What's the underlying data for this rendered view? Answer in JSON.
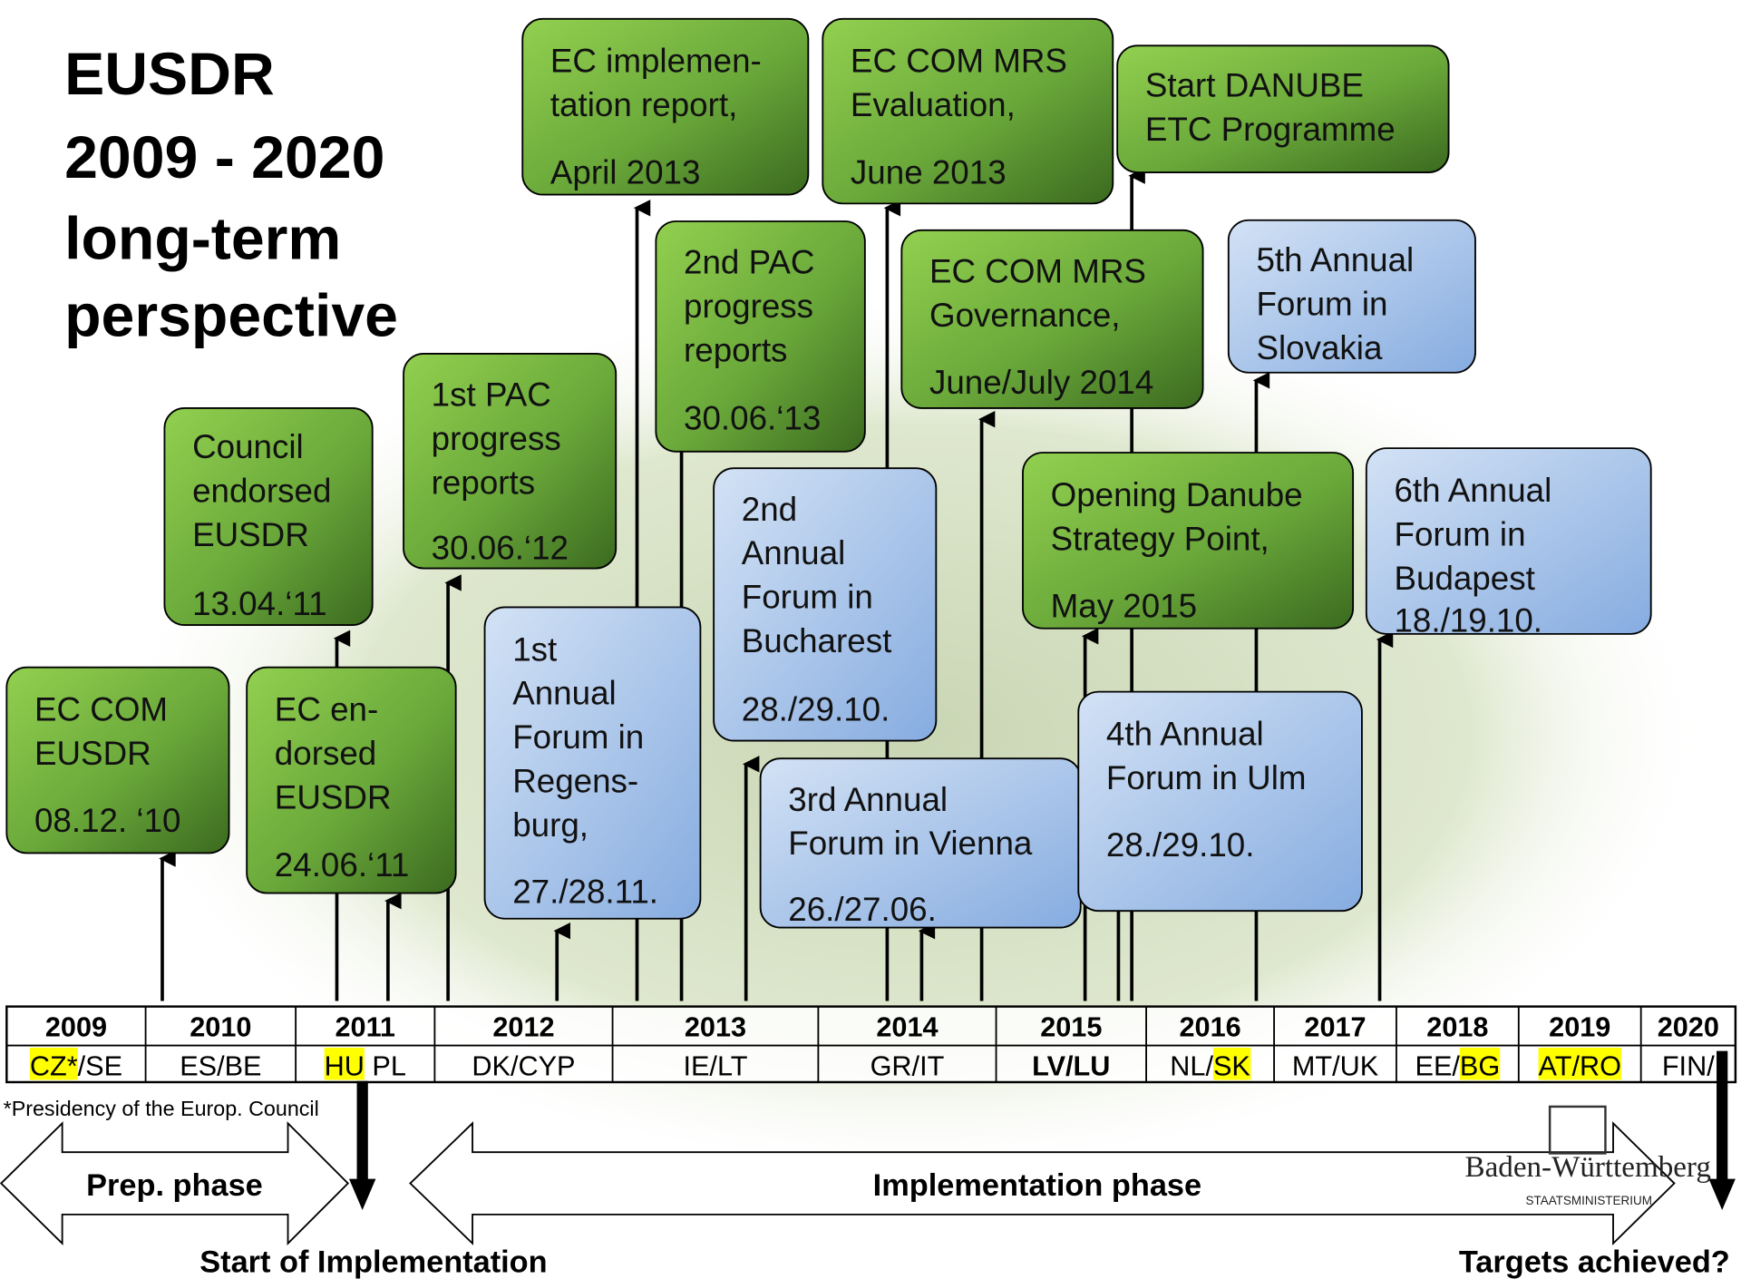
{
  "title": [
    "EUSDR",
    "2009 - 2020",
    "long-term",
    "perspective"
  ],
  "boxes": [
    {
      "lines": [
        "EC COM",
        "EUSDR"
      ],
      "date": "08.12. ‘10"
    },
    {
      "lines": [
        "Council",
        "endorsed",
        "EUSDR"
      ],
      "date": "13.04.‘11"
    },
    {
      "lines": [
        "EC en-",
        "dorsed",
        "EUSDR"
      ],
      "date": "24.06.‘11"
    },
    {
      "lines": [
        "1st PAC",
        "progress",
        "reports"
      ],
      "date": "30.06.‘12"
    },
    {
      "lines": [
        "EC implemen-",
        "tation report,"
      ],
      "date": "April 2013"
    },
    {
      "lines": [
        "2nd PAC",
        "progress",
        "reports"
      ],
      "date": "30.06.‘13"
    },
    {
      "lines": [
        "1st",
        "Annual",
        "Forum in",
        "Regens-",
        "burg,"
      ],
      "date": "27./28.11."
    },
    {
      "lines": [
        "2nd",
        "Annual",
        "Forum in",
        "Bucharest"
      ],
      "date": "28./29.10."
    },
    {
      "lines": [
        "EC COM MRS",
        "Evaluation,"
      ],
      "date": "June 2013"
    },
    {
      "lines": [
        "3rd Annual",
        "Forum in Vienna"
      ],
      "date": "26./27.06."
    },
    {
      "lines": [
        "EC COM MRS",
        "Governance,"
      ],
      "date": "June/July 2014"
    },
    {
      "lines": [
        "Start DANUBE",
        "ETC Programme"
      ],
      "date": null
    },
    {
      "lines": [
        "5th Annual",
        "Forum in",
        "Slovakia"
      ],
      "date": null
    },
    {
      "lines": [
        "Opening Danube",
        "Strategy Point,"
      ],
      "date": "May 2015"
    },
    {
      "lines": [
        "4th Annual",
        "Forum in Ulm"
      ],
      "date": "28./29.10."
    },
    {
      "lines": [
        "6th Annual",
        "Forum in",
        "Budapest"
      ],
      "date": "18./19.10."
    }
  ],
  "timeline": {
    "years": [
      "2009",
      "2010",
      "2011",
      "2012",
      "2013",
      "2014",
      "2015",
      "2016",
      "2017",
      "2018",
      "2019",
      "2020"
    ],
    "presidencies": [
      [
        "CZ*",
        "/SE"
      ],
      [
        "ES/BE"
      ],
      [
        "HU",
        " PL"
      ],
      [
        "DK/CYP"
      ],
      [
        "IE/LT"
      ],
      [
        "GR/IT"
      ],
      [
        "LV/LU"
      ],
      [
        "NL/",
        "SK"
      ],
      [
        "MT/UK"
      ],
      [
        "EE/",
        "BG"
      ],
      [
        "AT/RO"
      ],
      [
        "FIN/"
      ]
    ],
    "footnote": "*Presidency of the Europ. Council"
  },
  "phases": {
    "prep": "Prep. phase",
    "implementation": "Implementation phase",
    "start": "Start of Implementation",
    "end": "Targets achieved?"
  },
  "logo": {
    "name": "Baden-Württemberg",
    "sub": "STAATSMINISTERIUM"
  }
}
